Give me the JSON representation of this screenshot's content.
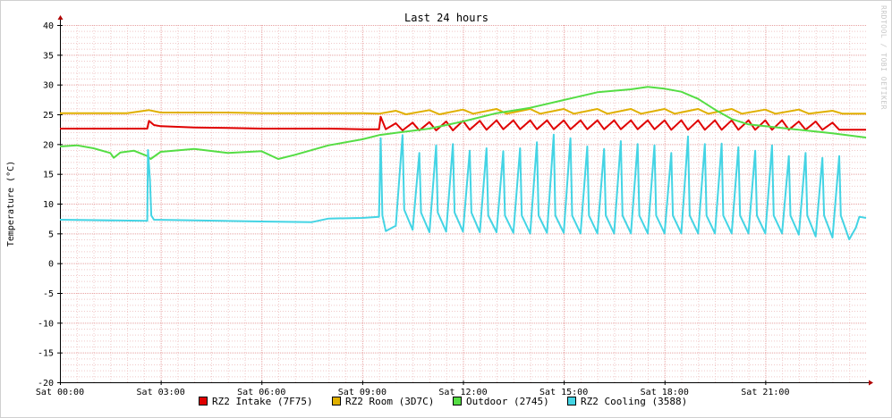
{
  "chart_data": {
    "type": "line",
    "title": "Last 24 hours",
    "ylabel": "Temperature (°C)",
    "xlabel": "",
    "watermark": "RRDTOOL / TOBI OETIKER",
    "ylim": [
      -20,
      40
    ],
    "yticks": [
      40,
      35,
      30,
      25,
      20,
      15,
      10,
      5,
      0,
      -5,
      -10,
      -15,
      -20
    ],
    "xlim": [
      0,
      24
    ],
    "xticks": [
      {
        "h": 0,
        "label": "Sat 00:00"
      },
      {
        "h": 3,
        "label": "Sat 03:00"
      },
      {
        "h": 6,
        "label": "Sat 06:00"
      },
      {
        "h": 9,
        "label": "Sat 09:00"
      },
      {
        "h": 12,
        "label": "Sat 12:00"
      },
      {
        "h": 15,
        "label": "Sat 15:00"
      },
      {
        "h": 18,
        "label": "Sat 18:00"
      },
      {
        "h": 21,
        "label": "Sat 21:00"
      }
    ],
    "grid": true,
    "legend_position": "bottom",
    "colors": {
      "grid_major": "#e8a0a0",
      "grid_minor": "#f0c8c8",
      "axis": "#000000",
      "arrow": "#b00000"
    },
    "series": [
      {
        "name": "RZ2 Intake (7F75)",
        "color": "#e00000",
        "points": [
          [
            0,
            22.6
          ],
          [
            1,
            22.6
          ],
          [
            2,
            22.6
          ],
          [
            2.6,
            22.6
          ],
          [
            2.65,
            23.9
          ],
          [
            2.8,
            23.2
          ],
          [
            3,
            23.0
          ],
          [
            4,
            22.8
          ],
          [
            5,
            22.7
          ],
          [
            6,
            22.6
          ],
          [
            7,
            22.6
          ],
          [
            8,
            22.6
          ],
          [
            9,
            22.5
          ],
          [
            9.5,
            22.5
          ],
          [
            9.55,
            24.6
          ],
          [
            9.7,
            22.5
          ],
          [
            10,
            23.5
          ],
          [
            10.2,
            22.3
          ],
          [
            10.5,
            23.6
          ],
          [
            10.7,
            22.3
          ],
          [
            11,
            23.7
          ],
          [
            11.2,
            22.3
          ],
          [
            11.5,
            23.8
          ],
          [
            11.7,
            22.3
          ],
          [
            12,
            23.9
          ],
          [
            12.2,
            22.4
          ],
          [
            12.5,
            23.9
          ],
          [
            12.7,
            22.4
          ],
          [
            13,
            24.0
          ],
          [
            13.2,
            22.5
          ],
          [
            13.5,
            24.0
          ],
          [
            13.7,
            22.5
          ],
          [
            14,
            24.0
          ],
          [
            14.2,
            22.5
          ],
          [
            14.5,
            24.0
          ],
          [
            14.7,
            22.5
          ],
          [
            15,
            24.0
          ],
          [
            15.2,
            22.5
          ],
          [
            15.5,
            24.0
          ],
          [
            15.7,
            22.5
          ],
          [
            16,
            24.0
          ],
          [
            16.2,
            22.5
          ],
          [
            16.5,
            24.0
          ],
          [
            16.7,
            22.5
          ],
          [
            17,
            24.0
          ],
          [
            17.2,
            22.5
          ],
          [
            17.5,
            24.0
          ],
          [
            17.7,
            22.5
          ],
          [
            18,
            24.0
          ],
          [
            18.2,
            22.4
          ],
          [
            18.5,
            24.0
          ],
          [
            18.7,
            22.4
          ],
          [
            19,
            24.0
          ],
          [
            19.2,
            22.4
          ],
          [
            19.5,
            24.0
          ],
          [
            19.7,
            22.4
          ],
          [
            20,
            24.0
          ],
          [
            20.2,
            22.4
          ],
          [
            20.5,
            24.0
          ],
          [
            20.7,
            22.4
          ],
          [
            21,
            24.0
          ],
          [
            21.2,
            22.4
          ],
          [
            21.5,
            24.0
          ],
          [
            21.7,
            22.4
          ],
          [
            22,
            23.8
          ],
          [
            22.2,
            22.4
          ],
          [
            22.5,
            23.8
          ],
          [
            22.7,
            22.4
          ],
          [
            23,
            23.6
          ],
          [
            23.2,
            22.4
          ],
          [
            24,
            22.4
          ]
        ]
      },
      {
        "name": "RZ2 Room (3D7C)",
        "color": "#e0b000",
        "points": [
          [
            0,
            25.2
          ],
          [
            1,
            25.2
          ],
          [
            2,
            25.2
          ],
          [
            2.65,
            25.7
          ],
          [
            3,
            25.3
          ],
          [
            4,
            25.3
          ],
          [
            5,
            25.3
          ],
          [
            6,
            25.2
          ],
          [
            7,
            25.2
          ],
          [
            8,
            25.2
          ],
          [
            9,
            25.2
          ],
          [
            9.5,
            25.1
          ],
          [
            10,
            25.6
          ],
          [
            10.3,
            25.0
          ],
          [
            11,
            25.7
          ],
          [
            11.3,
            25.0
          ],
          [
            12,
            25.8
          ],
          [
            12.3,
            25.1
          ],
          [
            13,
            25.9
          ],
          [
            13.3,
            25.1
          ],
          [
            14,
            25.9
          ],
          [
            14.3,
            25.1
          ],
          [
            15,
            25.9
          ],
          [
            15.3,
            25.1
          ],
          [
            16,
            25.9
          ],
          [
            16.3,
            25.1
          ],
          [
            17,
            25.9
          ],
          [
            17.3,
            25.1
          ],
          [
            18,
            25.9
          ],
          [
            18.3,
            25.1
          ],
          [
            19,
            25.9
          ],
          [
            19.3,
            25.1
          ],
          [
            20,
            25.9
          ],
          [
            20.3,
            25.1
          ],
          [
            21,
            25.8
          ],
          [
            21.3,
            25.1
          ],
          [
            22,
            25.8
          ],
          [
            22.3,
            25.1
          ],
          [
            23,
            25.6
          ],
          [
            23.3,
            25.1
          ],
          [
            24,
            25.1
          ]
        ]
      },
      {
        "name": "Outdoor (2745)",
        "color": "#55dd44",
        "points": [
          [
            0,
            19.6
          ],
          [
            0.5,
            19.8
          ],
          [
            1,
            19.3
          ],
          [
            1.5,
            18.5
          ],
          [
            1.6,
            17.7
          ],
          [
            1.8,
            18.6
          ],
          [
            2.2,
            18.9
          ],
          [
            2.6,
            18.0
          ],
          [
            2.7,
            17.5
          ],
          [
            3,
            18.7
          ],
          [
            4,
            19.2
          ],
          [
            5,
            18.5
          ],
          [
            6,
            18.8
          ],
          [
            6.5,
            17.5
          ],
          [
            7,
            18.2
          ],
          [
            8,
            19.8
          ],
          [
            9,
            20.8
          ],
          [
            9.5,
            21.5
          ],
          [
            10,
            21.9
          ],
          [
            11,
            22.6
          ],
          [
            12,
            23.8
          ],
          [
            13,
            25.2
          ],
          [
            14,
            26.1
          ],
          [
            15,
            27.4
          ],
          [
            16,
            28.7
          ],
          [
            17,
            29.2
          ],
          [
            17.5,
            29.6
          ],
          [
            18,
            29.3
          ],
          [
            18.5,
            28.8
          ],
          [
            19,
            27.6
          ],
          [
            19.5,
            25.8
          ],
          [
            20,
            24.2
          ],
          [
            20.5,
            23.3
          ],
          [
            21,
            23.0
          ],
          [
            22,
            22.4
          ],
          [
            23,
            21.8
          ],
          [
            24,
            21.1
          ]
        ]
      },
      {
        "name": "RZ2 Cooling (3588)",
        "color": "#44d4e4",
        "points": [
          [
            0,
            7.3
          ],
          [
            2.6,
            7.1
          ],
          [
            2.62,
            19.0
          ],
          [
            2.68,
            14.0
          ],
          [
            2.72,
            8.0
          ],
          [
            2.8,
            7.3
          ],
          [
            4,
            7.2
          ],
          [
            6,
            7.0
          ],
          [
            7.5,
            6.9
          ],
          [
            8,
            7.5
          ],
          [
            9,
            7.6
          ],
          [
            9.5,
            7.8
          ],
          [
            9.55,
            21.0
          ],
          [
            9.6,
            8.0
          ],
          [
            9.7,
            5.4
          ],
          [
            10,
            6.3
          ],
          [
            10.2,
            21.5
          ],
          [
            10.25,
            9.0
          ],
          [
            10.5,
            5.6
          ],
          [
            10.7,
            18.5
          ],
          [
            10.75,
            8.5
          ],
          [
            11,
            5.2
          ],
          [
            11.2,
            19.8
          ],
          [
            11.25,
            8.5
          ],
          [
            11.5,
            5.3
          ],
          [
            11.7,
            20.0
          ],
          [
            11.75,
            8.5
          ],
          [
            12,
            5.3
          ],
          [
            12.2,
            18.9
          ],
          [
            12.25,
            8.5
          ],
          [
            12.5,
            5.2
          ],
          [
            12.7,
            19.3
          ],
          [
            12.75,
            8.0
          ],
          [
            13,
            5.2
          ],
          [
            13.2,
            18.8
          ],
          [
            13.25,
            8.0
          ],
          [
            13.5,
            5.1
          ],
          [
            13.7,
            19.3
          ],
          [
            13.75,
            8.0
          ],
          [
            14,
            5.0
          ],
          [
            14.2,
            20.3
          ],
          [
            14.25,
            8.0
          ],
          [
            14.5,
            5.1
          ],
          [
            14.7,
            21.6
          ],
          [
            14.75,
            8.0
          ],
          [
            15,
            5.1
          ],
          [
            15.2,
            21.0
          ],
          [
            15.25,
            8.0
          ],
          [
            15.5,
            5.0
          ],
          [
            15.7,
            19.6
          ],
          [
            15.75,
            8.0
          ],
          [
            16,
            5.0
          ],
          [
            16.2,
            19.2
          ],
          [
            16.25,
            8.0
          ],
          [
            16.5,
            5.0
          ],
          [
            16.7,
            20.5
          ],
          [
            16.75,
            8.0
          ],
          [
            17,
            5.0
          ],
          [
            17.2,
            20.0
          ],
          [
            17.25,
            8.0
          ],
          [
            17.5,
            5.0
          ],
          [
            17.7,
            19.8
          ],
          [
            17.75,
            8.0
          ],
          [
            18,
            5.0
          ],
          [
            18.2,
            18.5
          ],
          [
            18.25,
            8.0
          ],
          [
            18.5,
            5.0
          ],
          [
            18.7,
            21.3
          ],
          [
            18.75,
            8.0
          ],
          [
            19,
            5.0
          ],
          [
            19.2,
            20.0
          ],
          [
            19.25,
            8.0
          ],
          [
            19.5,
            5.0
          ],
          [
            19.7,
            20.1
          ],
          [
            19.75,
            8.0
          ],
          [
            20,
            5.0
          ],
          [
            20.2,
            19.5
          ],
          [
            20.25,
            8.0
          ],
          [
            20.5,
            5.0
          ],
          [
            20.7,
            18.9
          ],
          [
            20.75,
            8.0
          ],
          [
            21,
            5.0
          ],
          [
            21.2,
            19.8
          ],
          [
            21.25,
            8.0
          ],
          [
            21.5,
            5.0
          ],
          [
            21.7,
            18.0
          ],
          [
            21.75,
            8.0
          ],
          [
            22,
            4.8
          ],
          [
            22.2,
            18.5
          ],
          [
            22.25,
            8.0
          ],
          [
            22.5,
            4.5
          ],
          [
            22.7,
            17.7
          ],
          [
            22.75,
            8.0
          ],
          [
            23,
            4.3
          ],
          [
            23.2,
            18.0
          ],
          [
            23.25,
            8.0
          ],
          [
            23.5,
            4.0
          ],
          [
            23.7,
            6.0
          ],
          [
            23.8,
            7.8
          ],
          [
            24,
            7.6
          ]
        ]
      }
    ]
  }
}
